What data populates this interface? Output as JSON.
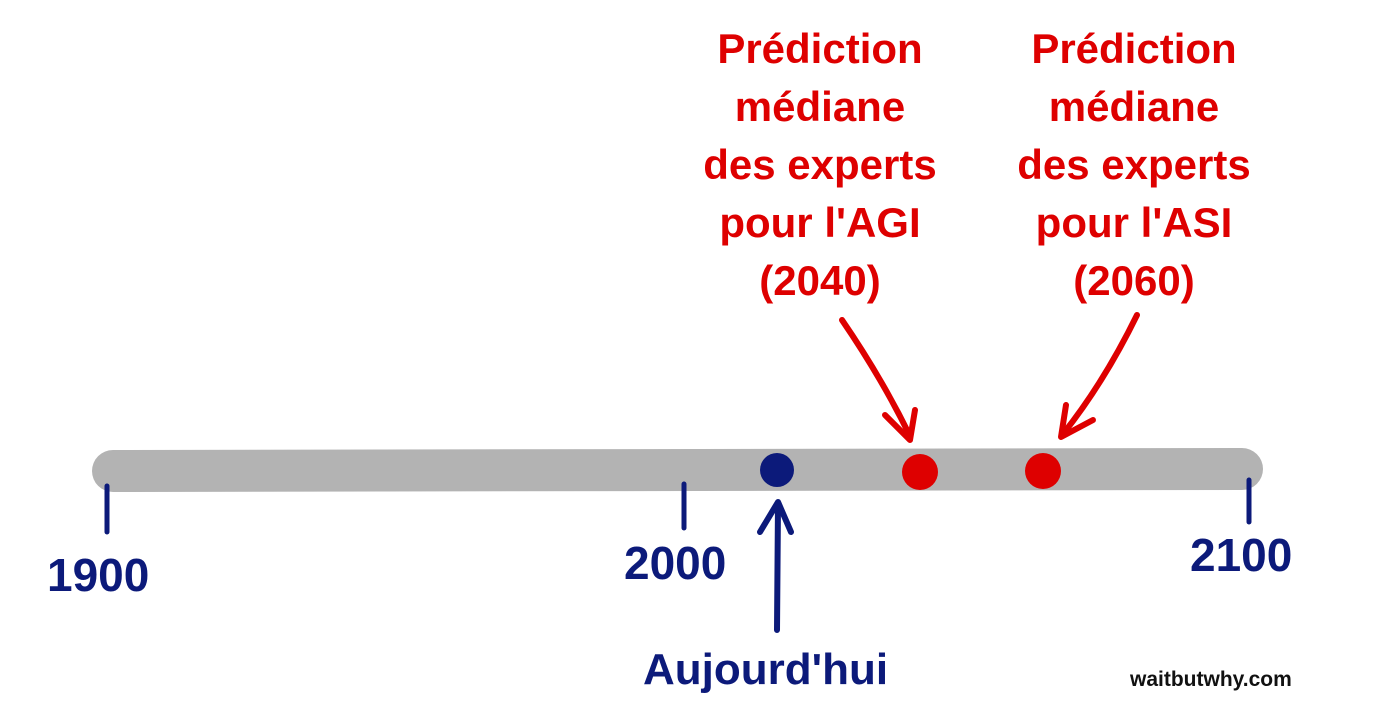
{
  "colors": {
    "timeline": "#b3b3b3",
    "navy": "#0c1a7a",
    "red": "#de0000",
    "credit": "#111111"
  },
  "ticks": [
    "1900",
    "2000",
    "2100"
  ],
  "today": {
    "label": "Aujourd'hui"
  },
  "predictions": [
    {
      "lines": [
        "Prédiction",
        "médiane",
        "des experts",
        "pour l'AGI",
        "(2040)"
      ]
    },
    {
      "lines": [
        "Prédiction",
        "médiane",
        "des experts",
        "pour l'ASI",
        "(2060)"
      ]
    }
  ],
  "credit": "waitbutwhy.com"
}
